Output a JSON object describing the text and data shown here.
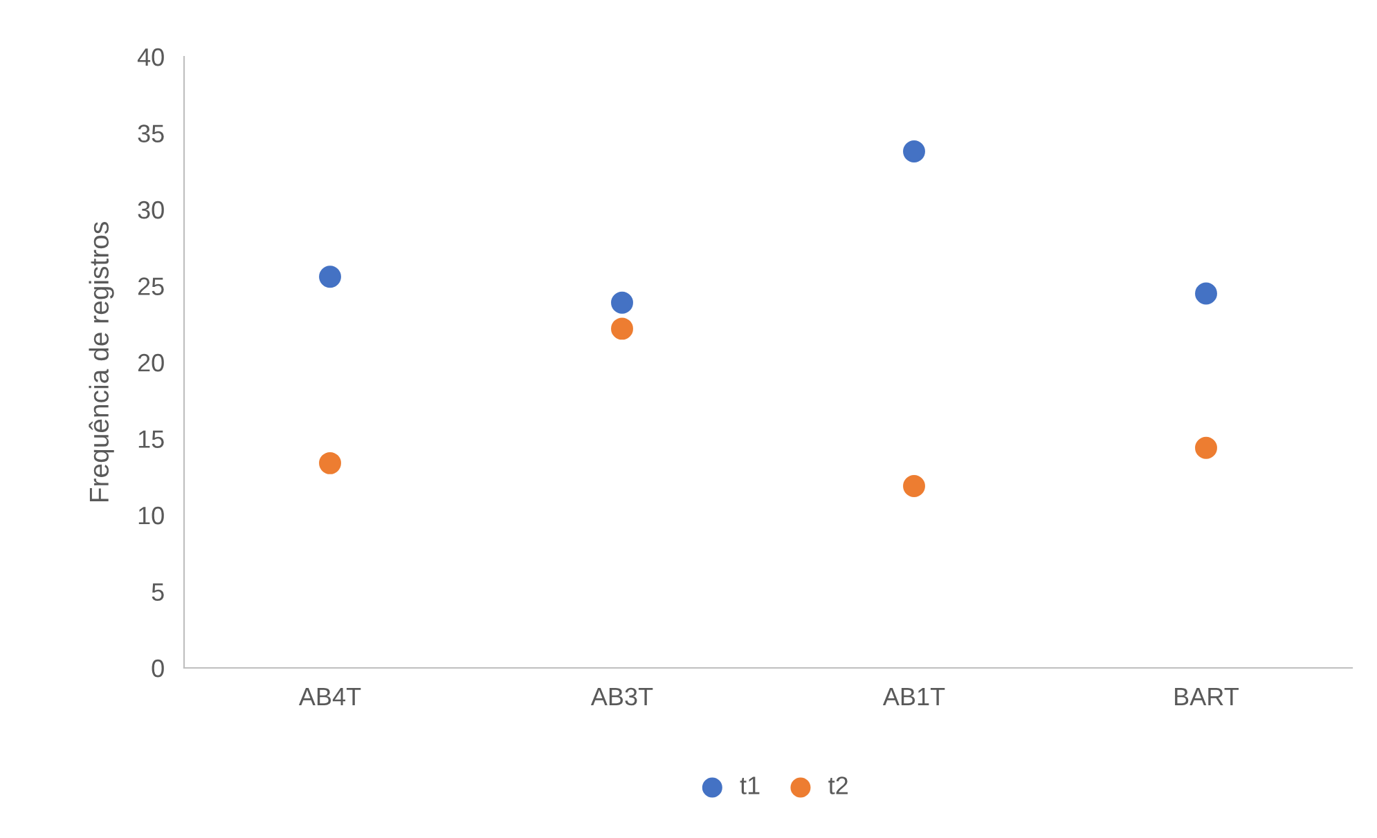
{
  "chart_data": {
    "type": "scatter",
    "ylabel": "Frequência de registros",
    "categories": [
      "AB4T",
      "AB3T",
      "AB1T",
      "BART"
    ],
    "series": [
      {
        "name": "t1",
        "color": "#4472c4",
        "values": [
          25.6,
          23.9,
          33.8,
          24.5
        ]
      },
      {
        "name": "t2",
        "color": "#ed7d31",
        "values": [
          13.4,
          22.2,
          11.9,
          14.4
        ]
      }
    ],
    "ylim": [
      0,
      40
    ],
    "yticks": [
      0,
      5,
      10,
      15,
      20,
      25,
      30,
      35,
      40
    ],
    "grid": false,
    "legend": "bottom",
    "marker": "circle"
  }
}
